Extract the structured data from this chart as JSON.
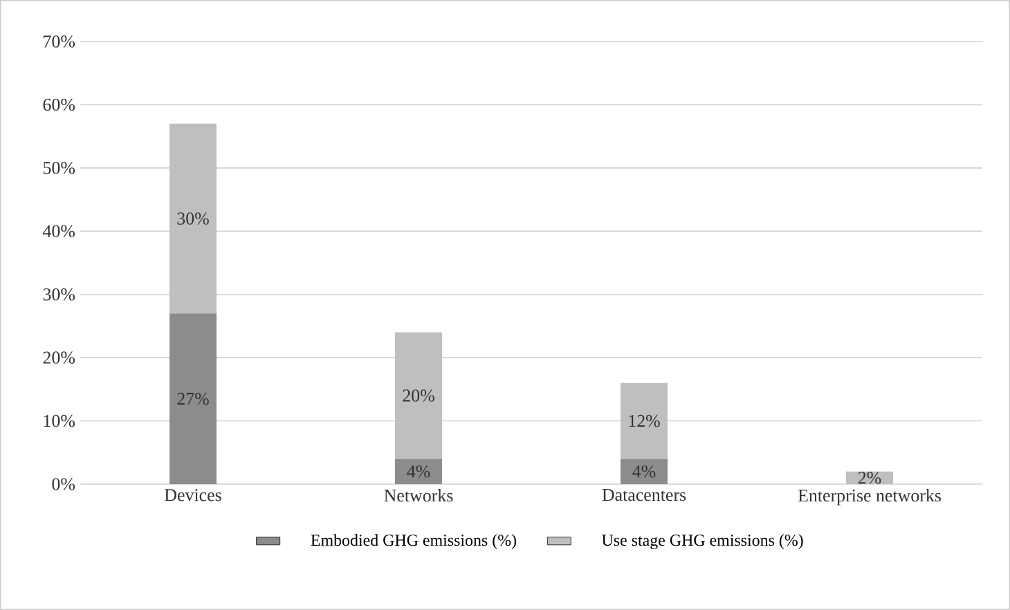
{
  "chart_data": {
    "type": "bar",
    "stacked": true,
    "categories": [
      "Devices",
      "Networks",
      "Datacenters",
      "Enterprise networks"
    ],
    "series": [
      {
        "name": "Embodied GHG emissions (%)",
        "color": "#8c8c8c",
        "values": [
          27,
          4,
          4,
          0
        ],
        "value_labels": [
          "27%",
          "4%",
          "4%",
          null
        ]
      },
      {
        "name": "Use stage GHG emissions (%)",
        "color": "#bfbfbf",
        "values": [
          30,
          20,
          12,
          2
        ],
        "value_labels": [
          "30%",
          "20%",
          "12%",
          "2%"
        ]
      }
    ],
    "ylim": [
      0,
      70
    ],
    "yticks": [
      {
        "value": 0,
        "label": "0%"
      },
      {
        "value": 10,
        "label": "10%"
      },
      {
        "value": 20,
        "label": "20%"
      },
      {
        "value": 30,
        "label": "30%"
      },
      {
        "value": 40,
        "label": "40%"
      },
      {
        "value": 50,
        "label": "50%"
      },
      {
        "value": 60,
        "label": "60%"
      },
      {
        "value": 70,
        "label": "70%"
      }
    ],
    "grid": "y",
    "legend": "bottom"
  }
}
